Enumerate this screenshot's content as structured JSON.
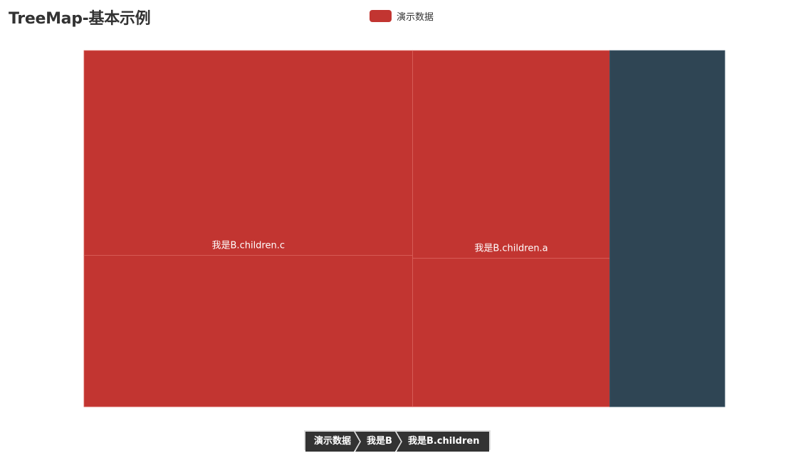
{
  "title": "TreeMap-基本示例",
  "legend": {
    "label": "演示数据",
    "color": "#c23531"
  },
  "colors": {
    "primary": "#c23531",
    "secondary": "#2f4554",
    "border": "#d9605a",
    "breadcrumb_bg": "#333333"
  },
  "breadcrumb": [
    {
      "label": "演示数据"
    },
    {
      "label": "我是B"
    },
    {
      "label": "我是B.children"
    }
  ],
  "chart_data": {
    "type": "treemap",
    "series_name": "演示数据",
    "current_node": "我是B.children",
    "nodes": [
      {
        "name": "我是B.children.c",
        "value": 40,
        "show_label": true,
        "children": [
          {
            "value": 23
          },
          {
            "value": 17
          }
        ]
      },
      {
        "name": "我是B.children.a",
        "value": 24,
        "show_label": true,
        "children": [
          {
            "value": 14
          },
          {
            "value": 10
          }
        ]
      },
      {
        "name": "",
        "value": 14,
        "show_label": false,
        "children": []
      }
    ]
  }
}
